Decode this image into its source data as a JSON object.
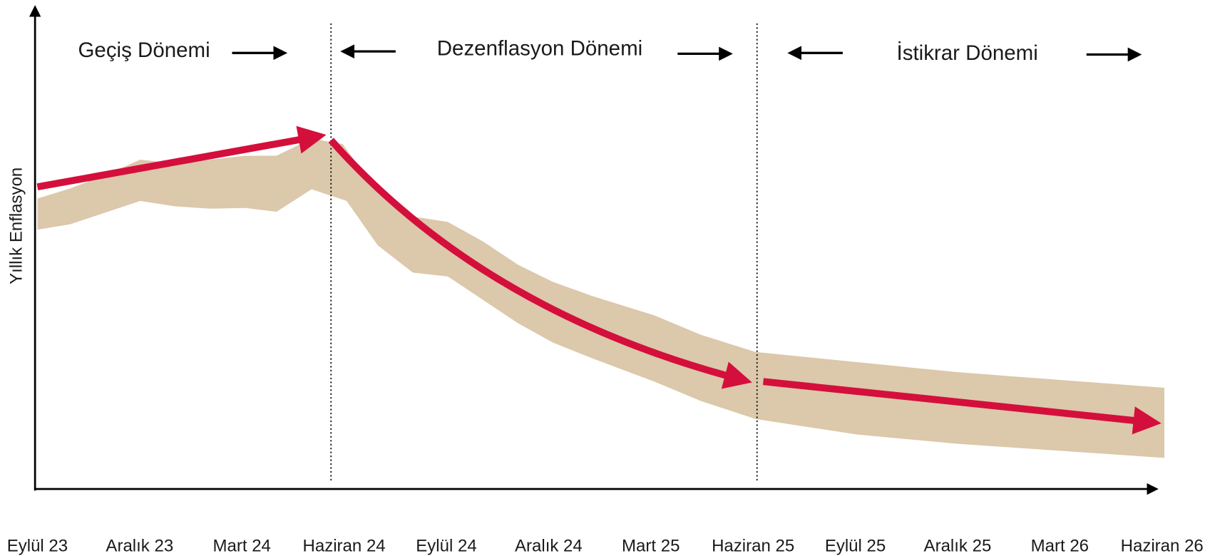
{
  "chart_data": {
    "type": "schematic",
    "ylabel": "Yıllık Enflasyon",
    "categories": [
      "Eylül 23",
      "Aralık 23",
      "Mart 24",
      "Haziran 24",
      "Eylül 24",
      "Aralık 24",
      "Mart 25",
      "Haziran 25",
      "Eylül 25",
      "Aralık 25",
      "Mart 26",
      "Haziran 26"
    ],
    "annotations": [
      "Geçiş Dönemi",
      "Dezenflasyon Dönemi",
      "İstikrar Dönemi"
    ],
    "band_color": "#dcc8aa",
    "arrow_color": "#d40f3c"
  }
}
